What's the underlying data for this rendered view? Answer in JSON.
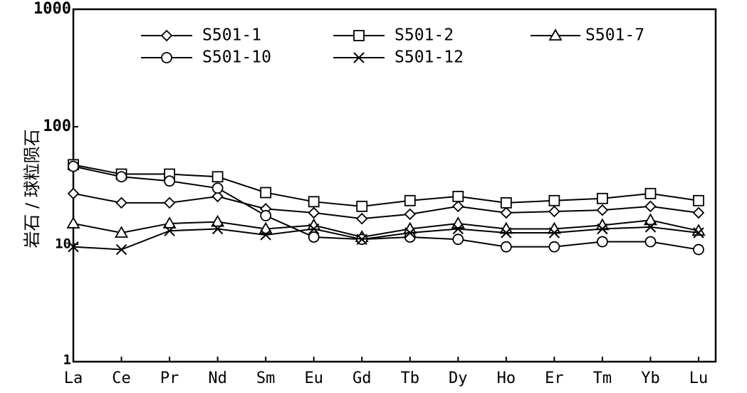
{
  "chart_data": {
    "type": "line",
    "title": "",
    "xlabel": "",
    "ylabel": "岩石 / 球粒陨石",
    "yscale": "log",
    "ylim": [
      1,
      1000
    ],
    "yticks": [
      "1",
      "10",
      "100",
      "1000"
    ],
    "grid": false,
    "legend_position": "top",
    "categories": [
      "La",
      "Ce",
      "Pr",
      "Nd",
      "Sm",
      "Eu",
      "Gd",
      "Tb",
      "Dy",
      "Ho",
      "Er",
      "Tm",
      "Yb",
      "Lu"
    ],
    "series": [
      {
        "name": "S501-1",
        "marker": "diamond",
        "values": [
          27,
          22.5,
          22.5,
          25.5,
          20,
          18.5,
          16.5,
          18,
          21,
          18.5,
          19,
          19.5,
          21,
          18.5
        ]
      },
      {
        "name": "S501-2",
        "marker": "square",
        "values": [
          47.5,
          39.5,
          39.5,
          37.5,
          27.5,
          23,
          21,
          23.5,
          25.5,
          22.5,
          23.5,
          24.5,
          27,
          23.5
        ]
      },
      {
        "name": "S501-7",
        "marker": "triangle",
        "values": [
          15,
          12.5,
          15,
          15.5,
          13.5,
          14.5,
          11.5,
          13.5,
          15,
          13.5,
          13.5,
          14.5,
          16,
          13
        ]
      },
      {
        "name": "S501-10",
        "marker": "circle",
        "values": [
          46,
          37.5,
          34.5,
          30,
          17.5,
          11.5,
          11,
          11.5,
          11,
          9.5,
          9.5,
          10.5,
          10.5,
          9
        ]
      },
      {
        "name": "S501-12",
        "marker": "x",
        "values": [
          9.5,
          9,
          13,
          13.5,
          12,
          13.5,
          11,
          12.5,
          13.5,
          12.5,
          12.5,
          13.5,
          14,
          12.5
        ]
      }
    ]
  }
}
